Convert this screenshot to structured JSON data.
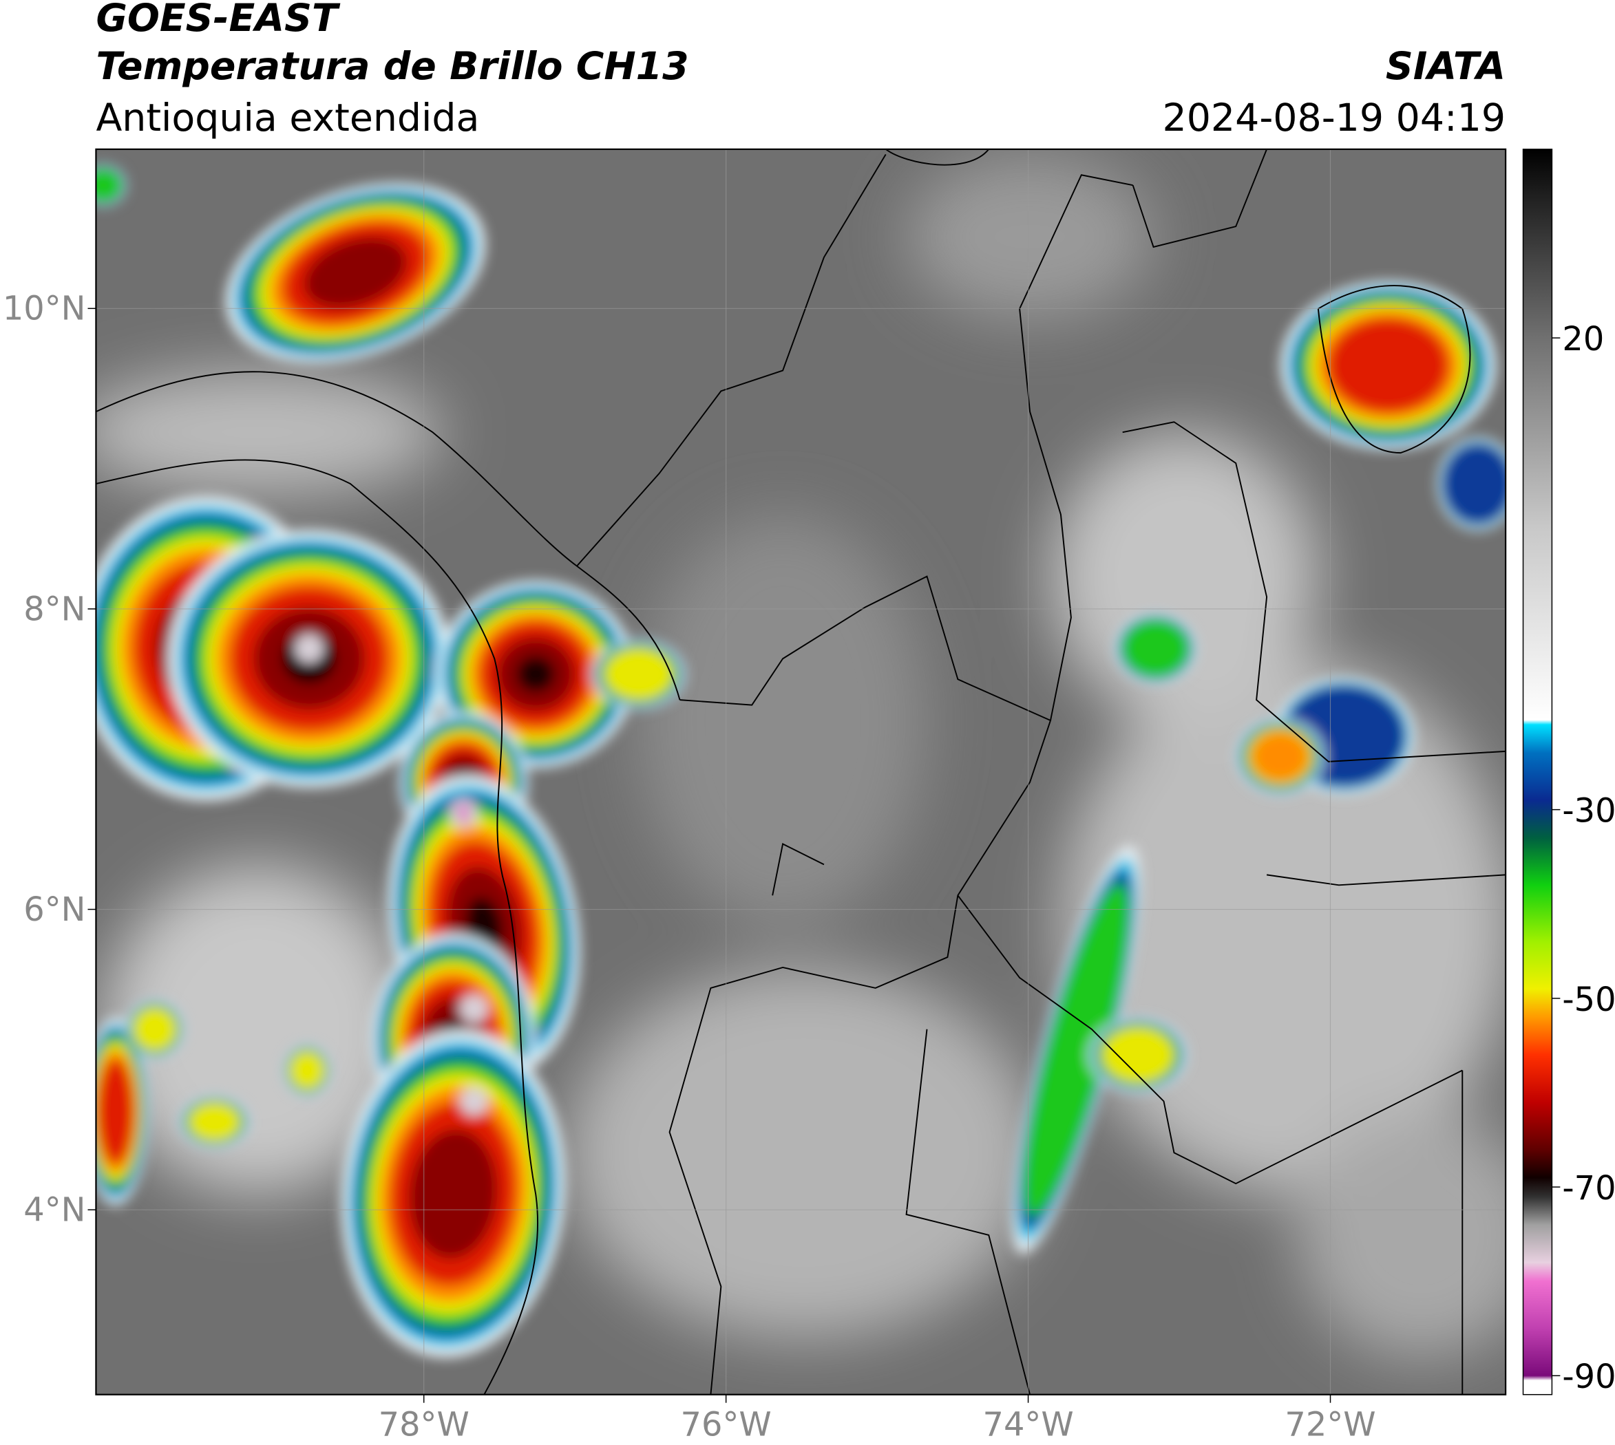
{
  "header": {
    "title_lines": [
      "GOES-EAST",
      "Temperatura de Brillo CH13"
    ],
    "region": "Antioquia extendida",
    "source": "SIATA",
    "timestamp": "2024-08-19 04:19"
  },
  "map": {
    "xlim": [
      -80.17,
      -70.84
    ],
    "ylim": [
      2.77,
      11.06
    ],
    "xticks": [
      {
        "value": -78,
        "label": "78°W"
      },
      {
        "value": -76,
        "label": "76°W"
      },
      {
        "value": -74,
        "label": "74°W"
      },
      {
        "value": -72,
        "label": "72°W"
      }
    ],
    "yticks": [
      {
        "value": 10,
        "label": "10°N"
      },
      {
        "value": 8,
        "label": "8°N"
      },
      {
        "value": 6,
        "label": "6°N"
      },
      {
        "value": 4,
        "label": "4°N"
      }
    ]
  },
  "colorbar": {
    "range": [
      -92,
      40
    ],
    "ticks": [
      20,
      -30,
      -50,
      -70,
      -90
    ]
  }
}
